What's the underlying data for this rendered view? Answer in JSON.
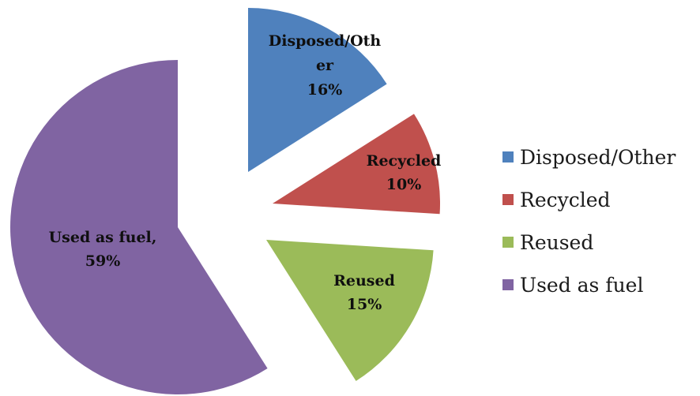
{
  "chart_data": {
    "type": "pie",
    "exploded": true,
    "legend_position": "right",
    "start_angle": "12 o'clock, clockwise",
    "slices": [
      {
        "name": "Disposed/Other",
        "value": 16,
        "label_lines": [
          "Disposed/Oth",
          "er",
          "16%"
        ],
        "color": "#4f81bd"
      },
      {
        "name": "Recycled",
        "value": 10,
        "label_lines": [
          "Recycled",
          "10%"
        ],
        "color": "#c0504d"
      },
      {
        "name": "Reused",
        "value": 15,
        "label_lines": [
          "Reused",
          "15%"
        ],
        "color": "#9bbb59"
      },
      {
        "name": "Used as fuel",
        "value": 59,
        "label_lines": [
          "Used as fuel,",
          "59%"
        ],
        "color": "#8064a2"
      }
    ]
  }
}
